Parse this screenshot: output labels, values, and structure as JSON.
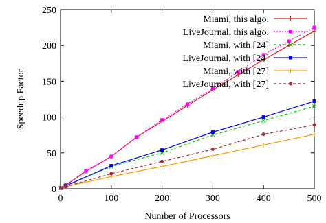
{
  "chart_data": {
    "type": "line",
    "xlabel": "Number of Processors",
    "ylabel": "Speedup Factor",
    "xlim": [
      0,
      500
    ],
    "ylim": [
      0,
      250
    ],
    "xticks": [
      0,
      100,
      200,
      300,
      400,
      500
    ],
    "yticks": [
      0,
      50,
      100,
      150,
      200,
      250
    ],
    "grid": false,
    "legend_position": "top-right",
    "series": [
      {
        "name": "Miami, this algo.",
        "color": "#e41a1c",
        "dash": "solid",
        "marker": "plus",
        "x": [
          1,
          10,
          50,
          100,
          150,
          200,
          250,
          300,
          350,
          400,
          450,
          500
        ],
        "y": [
          1,
          5,
          24,
          45,
          72,
          94,
          116,
          138,
          159,
          180,
          200,
          220
        ]
      },
      {
        "name": "LiveJournal, this algo.",
        "color": "#ff00ff",
        "dash": "dotted",
        "marker": "square",
        "x": [
          1,
          10,
          50,
          100,
          150,
          200,
          250,
          300,
          350,
          400,
          450,
          500
        ],
        "y": [
          1,
          5,
          25,
          45,
          72,
          96,
          118,
          140,
          163,
          187,
          206,
          225
        ]
      },
      {
        "name": "Miami, with [24]",
        "color": "#00cc00",
        "dash": "dashed",
        "marker": "x",
        "x": [
          1,
          10,
          100,
          200,
          300,
          400,
          500
        ],
        "y": [
          1,
          4,
          31,
          50,
          75,
          95,
          115
        ]
      },
      {
        "name": "LiveJournal, with [24]",
        "color": "#0000ff",
        "dash": "solid",
        "marker": "square",
        "x": [
          1,
          10,
          100,
          200,
          300,
          400,
          500
        ],
        "y": [
          1,
          4,
          32,
          54,
          79,
          100,
          122
        ]
      },
      {
        "name": "Miami, with [27]",
        "color": "#ff9900",
        "dash": "solid",
        "marker": "plus",
        "x": [
          1,
          10,
          100,
          200,
          300,
          400,
          500
        ],
        "y": [
          1,
          3,
          17,
          31,
          46,
          61,
          76
        ]
      },
      {
        "name": "LiveJournal, with [27]",
        "color": "#a52a2a",
        "dash": "dashed",
        "marker": "circle",
        "x": [
          1,
          10,
          100,
          200,
          300,
          400,
          500
        ],
        "y": [
          1,
          3,
          21,
          38,
          55,
          76,
          89
        ]
      }
    ]
  }
}
